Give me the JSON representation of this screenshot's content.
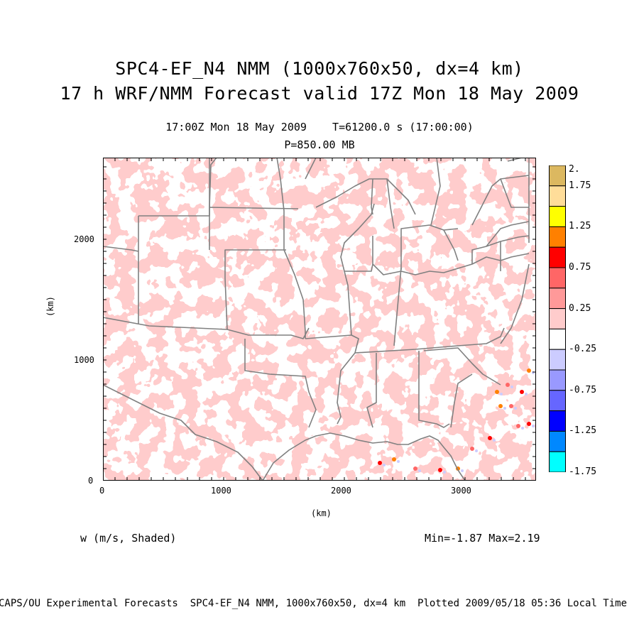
{
  "titles": {
    "line1": "SPC4-EF_N4 NMM (1000x760x50, dx=4 km)",
    "line2": "17 h WRF/NMM Forecast valid 17Z Mon 18 May 2009",
    "time": "17:00Z Mon 18 May 2009    T=61200.0 s (17:00:00)",
    "level": "P=850.00 MB"
  },
  "variable_label": "w (m/s, Shaded)",
  "min_max": "Min=-1.87 Max=2.19",
  "footer": "CAPS/OU Experimental Forecasts  SPC4-EF_N4 NMM, 1000x760x50, dx=4 km  Plotted 2009/05/18 05:36 Local Time",
  "axes": {
    "x_label": "(km)",
    "y_label": "(km)",
    "x_ticks": [
      "0",
      "1000",
      "2000",
      "3000"
    ],
    "y_ticks": [
      "0",
      "1000",
      "2000"
    ]
  },
  "colorbar": {
    "labels": [
      "2.",
      "1.75",
      "1.25",
      "0.75",
      "0.25",
      "-0.25",
      "-0.75",
      "-1.25",
      "-1.75"
    ],
    "colors_top_to_bottom": [
      "#dcb860",
      "#ffdd99",
      "#ffff00",
      "#ff8000",
      "#ff0000",
      "#ff6666",
      "#ff9999",
      "#ffcccc",
      "#ffffff",
      "#ccccff",
      "#9999ff",
      "#6666ff",
      "#0000ff",
      "#0088ff",
      "#00ffff"
    ]
  },
  "map": {
    "outline_color": "#808080",
    "shade_positive": "#ffcccc",
    "shade_negative": "#ccccff"
  }
}
